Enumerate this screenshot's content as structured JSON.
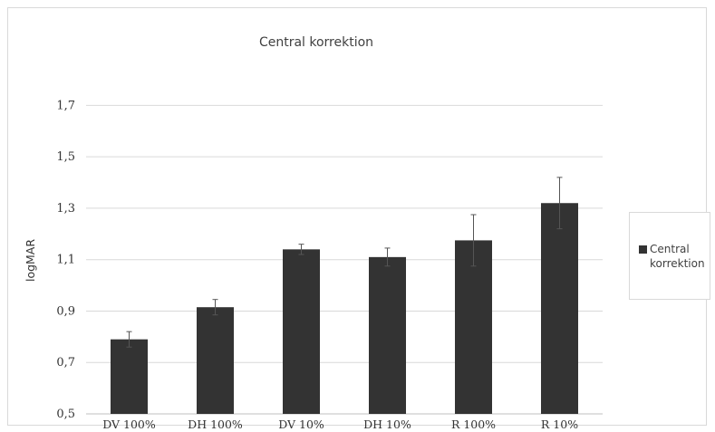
{
  "chart_data": {
    "type": "bar",
    "title": "Central  korrektion",
    "ylabel": "logMAR",
    "xlabel": "",
    "categories": [
      "DV 100%",
      "DH 100%",
      "DV 10%",
      "DH 10%",
      "R 100%",
      "R 10%"
    ],
    "series": [
      {
        "name": "Central korrektion",
        "values": [
          0.79,
          0.915,
          1.14,
          1.11,
          1.175,
          1.32
        ],
        "error": [
          0.03,
          0.03,
          0.02,
          0.035,
          0.1,
          0.1
        ],
        "color": "#333333"
      }
    ],
    "ylim": [
      0.5,
      1.8
    ],
    "yticks": [
      0.5,
      0.7,
      0.9,
      1.1,
      1.3,
      1.5,
      1.7
    ],
    "ytick_labels": [
      "0,5",
      "0,7",
      "0,9",
      "1,1",
      "1,3",
      "1,5",
      "1,7"
    ],
    "grid": true,
    "legend_position": "right"
  }
}
